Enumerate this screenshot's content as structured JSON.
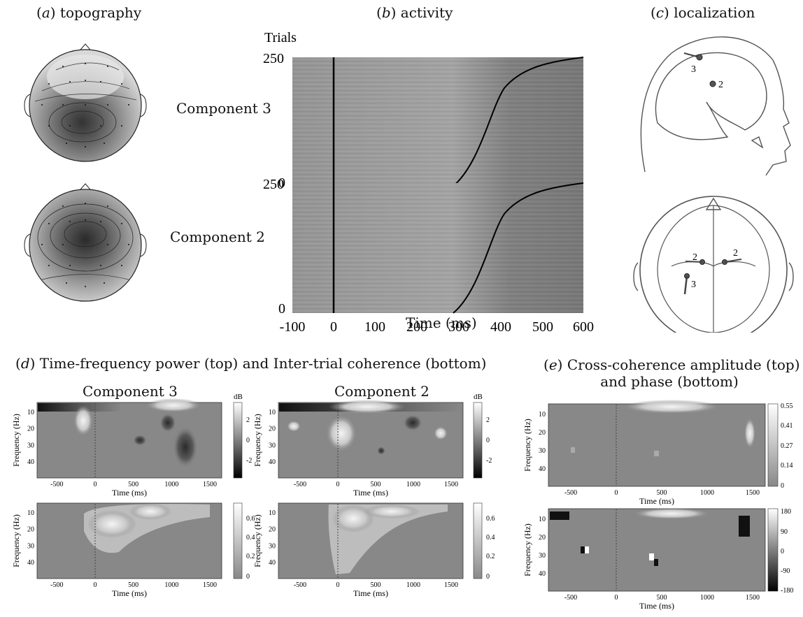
{
  "panels": {
    "a": {
      "letter": "a",
      "title": "topography"
    },
    "b": {
      "letter": "b",
      "title": "activity"
    },
    "c": {
      "letter": "c",
      "title": "localization"
    },
    "d": {
      "letter": "d",
      "title": "Time-frequency power (top) and Inter-trial coherence (bottom)"
    },
    "e": {
      "letter": "e",
      "title_line1": "Cross-coherence amplitude (top)",
      "title_line2": "and phase (bottom)"
    }
  },
  "components": {
    "c3": "Component 3",
    "c2": "Component 2"
  },
  "activity": {
    "ylabel": "Trials",
    "y_ticks": [
      "250",
      "0"
    ],
    "x_ticks": [
      "-100",
      "0",
      "100",
      "200",
      "300",
      "400",
      "500",
      "600"
    ],
    "xlabel": "Time (ms)"
  },
  "localization": {
    "dipole_labels": [
      "3",
      "2",
      "2",
      "2",
      "3"
    ]
  },
  "tf": {
    "ylabel": "Frequency (Hz)",
    "xlabel": "Time (ms)",
    "freq_ticks": [
      "10",
      "20",
      "30",
      "40"
    ],
    "time_ticks": [
      "-500",
      "0",
      "500",
      "1000",
      "1500"
    ],
    "db_unit": "dB",
    "power_colorbar_ticks": [
      "2",
      "0",
      "-2"
    ],
    "itc_c3_colorbar_ticks": [
      "0.6",
      "0.4",
      "0.2",
      "0"
    ],
    "itc_c2_colorbar_ticks": [
      "0.6",
      "0.4",
      "0.2",
      "0"
    ],
    "amp_colorbar_ticks": [
      "0.55",
      "0.41",
      "0.27",
      "0.14",
      "0"
    ],
    "phase_colorbar_ticks": [
      "180",
      "90",
      "0",
      "-90",
      "-180"
    ]
  },
  "colors": {
    "plot_gray": "#888888",
    "dot": "#555555"
  }
}
